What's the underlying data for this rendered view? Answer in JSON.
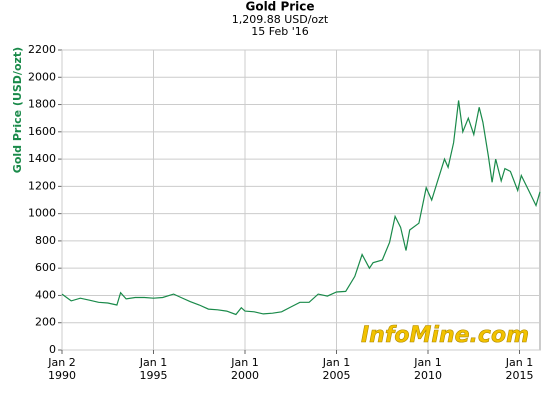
{
  "chart_data": {
    "type": "line",
    "title": "Gold Price",
    "subtitle": "1,209.88 USD/ozt",
    "date": "15 Feb '16",
    "y_label": "Gold Price (USD/ozt)",
    "watermark": "InfoMine.com",
    "x": [
      1990.0,
      1990.5,
      1991.0,
      1991.5,
      1992.0,
      1992.5,
      1993.0,
      1993.2,
      1993.5,
      1994.0,
      1994.5,
      1995.0,
      1995.5,
      1996.1,
      1996.5,
      1997.0,
      1997.5,
      1998.0,
      1998.5,
      1999.0,
      1999.5,
      1999.8,
      2000.0,
      2000.5,
      2001.0,
      2001.5,
      2002.0,
      2002.5,
      2003.0,
      2003.5,
      2004.0,
      2004.5,
      2005.0,
      2005.5,
      2006.0,
      2006.4,
      2006.8,
      2007.0,
      2007.5,
      2007.9,
      2008.2,
      2008.5,
      2008.8,
      2009.0,
      2009.5,
      2009.9,
      2010.2,
      2010.5,
      2010.9,
      2011.1,
      2011.4,
      2011.67,
      2011.9,
      2012.2,
      2012.5,
      2012.8,
      2013.0,
      2013.3,
      2013.5,
      2013.7,
      2014.0,
      2014.2,
      2014.5,
      2014.9,
      2015.1,
      2015.5,
      2015.9,
      2016.12
    ],
    "series": [
      {
        "name": "Gold Price",
        "color": "#1a8a4a",
        "values": [
          410,
          360,
          380,
          365,
          350,
          345,
          330,
          420,
          375,
          385,
          385,
          380,
          385,
          410,
          385,
          355,
          330,
          300,
          295,
          285,
          260,
          310,
          285,
          280,
          265,
          270,
          280,
          315,
          350,
          350,
          410,
          395,
          425,
          430,
          540,
          700,
          600,
          640,
          660,
          790,
          980,
          900,
          730,
          880,
          930,
          1190,
          1100,
          1230,
          1400,
          1340,
          1520,
          1830,
          1600,
          1700,
          1580,
          1780,
          1670,
          1420,
          1230,
          1400,
          1240,
          1330,
          1310,
          1170,
          1280,
          1170,
          1060,
          1160
        ]
      }
    ],
    "xlim": [
      1990.0,
      2016.12
    ],
    "xticks": [
      {
        "value": 1990.0,
        "label": [
          "Jan 2",
          "1990"
        ]
      },
      {
        "value": 1995.0,
        "label": [
          "Jan 1",
          "1995"
        ]
      },
      {
        "value": 2000.0,
        "label": [
          "Jan 1",
          "2000"
        ]
      },
      {
        "value": 2005.0,
        "label": [
          "Jan 1",
          "2005"
        ]
      },
      {
        "value": 2010.0,
        "label": [
          "Jan 1",
          "2010"
        ]
      },
      {
        "value": 2015.0,
        "label": [
          "Jan 1",
          "2015"
        ]
      }
    ],
    "ylim": [
      0,
      2200
    ],
    "yticks": [
      0,
      200,
      400,
      600,
      800,
      1000,
      1200,
      1400,
      1600,
      1800,
      2000,
      2200
    ],
    "grid": true
  }
}
